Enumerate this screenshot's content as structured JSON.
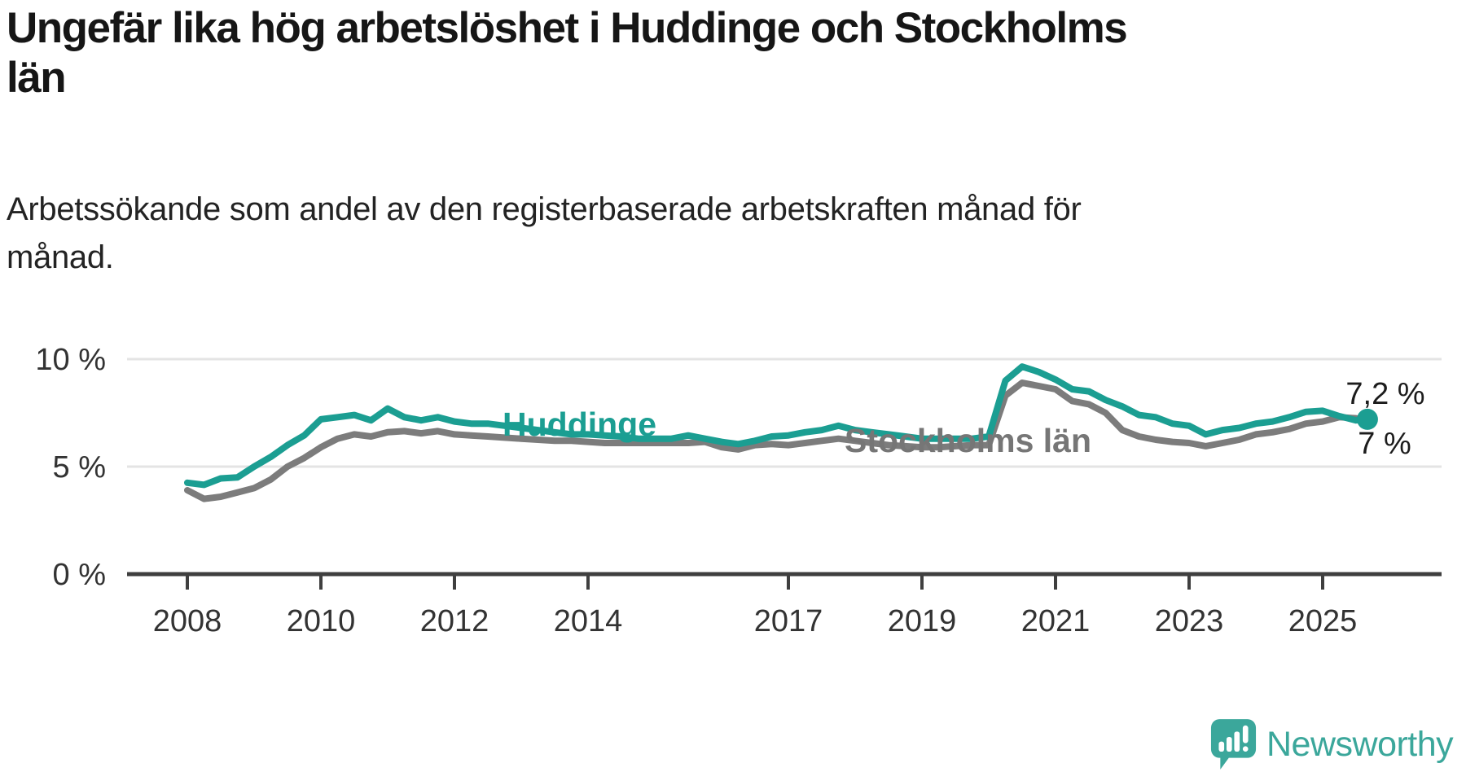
{
  "header": {
    "title": "Ungefär lika hög arbetslöshet i Huddinge och Stockholms län",
    "title_lines": [
      "Ungefär lika hög arbetslöshet i Huddinge och Stockholms",
      "län"
    ],
    "subtitle": "Arbetssökande som andel av den registerbaserade arbetskraften månad för månad.",
    "subtitle_lines": [
      "Arbetssökande som andel av den registerbaserade arbetskraften månad för",
      "månad."
    ]
  },
  "branding": {
    "logo_text": "Newsworthy",
    "logo_icon": "bar-chart-speech-bubble-icon",
    "brand_color": "#3ba79b"
  },
  "chart_data": {
    "type": "line",
    "title": "Ungefär lika hög arbetslöshet i Huddinge och Stockholms län",
    "subtitle": "Arbetssökande som andel av den registerbaserade arbetskraften månad för månad.",
    "unit": "%",
    "grid": "horizontal-gridlines-at-5-and-10",
    "legend": "inline-series-labels",
    "xlim": [
      2007.1,
      2026.8
    ],
    "ylim": [
      0,
      10.6
    ],
    "x_ticks": [
      {
        "label": "2008",
        "year": 2008
      },
      {
        "label": "2010",
        "year": 2010
      },
      {
        "label": "2012",
        "year": 2012
      },
      {
        "label": "2014",
        "year": 2014
      },
      {
        "label": "2017",
        "year": 2017
      },
      {
        "label": "2019",
        "year": 2019
      },
      {
        "label": "2021",
        "year": 2021
      },
      {
        "label": "2023",
        "year": 2023
      },
      {
        "label": "2025",
        "year": 2025
      }
    ],
    "y_ticks": [
      {
        "label": "0 %",
        "value": 0
      },
      {
        "label": "5 %",
        "value": 5
      },
      {
        "label": "10 %",
        "value": 10
      }
    ],
    "x": [
      2008.0,
      2008.25,
      2008.5,
      2008.75,
      2009.0,
      2009.25,
      2009.5,
      2009.75,
      2010.0,
      2010.25,
      2010.5,
      2010.75,
      2011.0,
      2011.25,
      2011.5,
      2011.75,
      2012.0,
      2012.25,
      2012.5,
      2012.75,
      2013.0,
      2013.25,
      2013.5,
      2013.75,
      2014.0,
      2014.25,
      2014.5,
      2014.75,
      2015.0,
      2015.25,
      2015.5,
      2015.75,
      2016.0,
      2016.25,
      2016.5,
      2016.75,
      2017.0,
      2017.25,
      2017.5,
      2017.75,
      2018.0,
      2018.25,
      2018.5,
      2018.75,
      2019.0,
      2019.25,
      2019.5,
      2019.75,
      2020.0,
      2020.25,
      2020.5,
      2020.75,
      2021.0,
      2021.25,
      2021.5,
      2021.75,
      2022.0,
      2022.25,
      2022.5,
      2022.75,
      2023.0,
      2023.25,
      2023.5,
      2023.75,
      2024.0,
      2024.25,
      2024.5,
      2024.75,
      2025.0,
      2025.25,
      2025.5,
      2025.67
    ],
    "series": [
      {
        "name": "Huddinge",
        "color": "#1b9e92",
        "end_value_label": "7,2 %",
        "end_marker": "dot",
        "values": [
          4.25,
          4.15,
          4.45,
          4.5,
          5.0,
          5.45,
          6.0,
          6.45,
          7.2,
          7.3,
          7.4,
          7.15,
          7.7,
          7.3,
          7.15,
          7.3,
          7.1,
          7.0,
          7.0,
          6.9,
          6.8,
          6.7,
          6.6,
          6.5,
          6.5,
          6.45,
          6.4,
          6.3,
          6.3,
          6.3,
          6.45,
          6.3,
          6.15,
          6.05,
          6.2,
          6.4,
          6.45,
          6.6,
          6.7,
          6.9,
          6.7,
          6.6,
          6.5,
          6.4,
          6.3,
          6.3,
          6.3,
          6.3,
          6.4,
          9.0,
          9.65,
          9.4,
          9.05,
          8.6,
          8.5,
          8.1,
          7.8,
          7.4,
          7.3,
          7.0,
          6.9,
          6.5,
          6.7,
          6.8,
          7.0,
          7.1,
          7.3,
          7.55,
          7.6,
          7.35,
          7.15,
          7.2
        ]
      },
      {
        "name": "Stockholms län",
        "color": "#7c7c7c",
        "end_value_label": "7 %",
        "end_marker": "none",
        "values": [
          3.9,
          3.5,
          3.6,
          3.8,
          4.0,
          4.4,
          5.0,
          5.4,
          5.9,
          6.3,
          6.5,
          6.4,
          6.6,
          6.65,
          6.55,
          6.65,
          6.5,
          6.45,
          6.4,
          6.35,
          6.3,
          6.25,
          6.2,
          6.2,
          6.15,
          6.1,
          6.1,
          6.1,
          6.1,
          6.1,
          6.1,
          6.15,
          5.9,
          5.8,
          6.0,
          6.05,
          6.0,
          6.1,
          6.2,
          6.3,
          6.2,
          6.1,
          6.0,
          5.95,
          5.9,
          5.9,
          5.95,
          6.0,
          6.0,
          8.3,
          8.9,
          8.75,
          8.6,
          8.05,
          7.9,
          7.5,
          6.7,
          6.4,
          6.25,
          6.15,
          6.1,
          5.95,
          6.1,
          6.25,
          6.5,
          6.6,
          6.75,
          7.0,
          7.1,
          7.3,
          7.25,
          7.0
        ]
      }
    ]
  }
}
